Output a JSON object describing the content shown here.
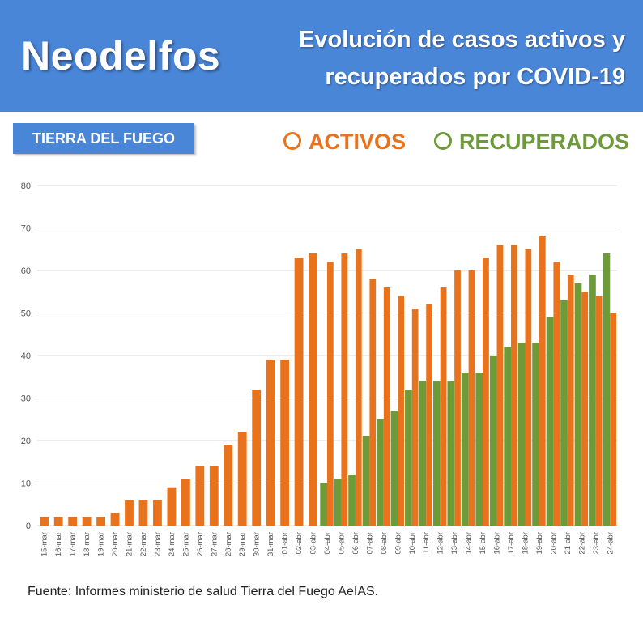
{
  "header": {
    "brand": "Neodelfos",
    "title_line1": "Evolución de casos activos y",
    "title_line2": "recuperados por COVID-19"
  },
  "region_label": "TIERRA DEL FUEGO",
  "legend": {
    "activos": {
      "label": "ACTIVOS",
      "color": "#e8731c"
    },
    "recuperados": {
      "label": "RECUPERADOS",
      "color": "#6e9b3a"
    }
  },
  "source": "Fuente: Informes ministerio de salud Tierra del Fuego AeIAS.",
  "colors": {
    "header_bg": "#4a86d8",
    "grid": "#d9d9d9",
    "tick_text": "#555555"
  },
  "chart_data": {
    "type": "bar",
    "ylim": [
      0,
      80
    ],
    "yticks": [
      0,
      10,
      20,
      30,
      40,
      50,
      60,
      70,
      80
    ],
    "grid": true,
    "categories": [
      "15-mar",
      "16-mar",
      "17-mar",
      "18-mar",
      "19-mar",
      "20-mar",
      "21-mar",
      "22-mar",
      "23-mar",
      "24-mar",
      "25-mar",
      "26-mar",
      "27-mar",
      "28-mar",
      "29-mar",
      "30-mar",
      "31-mar",
      "01-abr",
      "02-abr",
      "03-abr",
      "04-abr",
      "05-abr",
      "06-abr",
      "07-abr",
      "08-abr",
      "09-abr",
      "10-abr",
      "11-abr",
      "12-abr",
      "13-abr",
      "14-abr",
      "15-abr",
      "16-abr",
      "17-abr",
      "18-abr",
      "19-abr",
      "20-abr",
      "21-abr",
      "22-abr",
      "23-abr",
      "24-abr"
    ],
    "series": [
      {
        "name": "ACTIVOS",
        "color": "#e8731c",
        "values": [
          2,
          2,
          2,
          2,
          2,
          3,
          6,
          6,
          6,
          9,
          11,
          14,
          14,
          19,
          22,
          32,
          39,
          39,
          63,
          64,
          62,
          64,
          65,
          58,
          56,
          54,
          51,
          52,
          56,
          60,
          60,
          63,
          66,
          66,
          65,
          68,
          62,
          59,
          55,
          54,
          50
        ]
      },
      {
        "name": "RECUPERADOS",
        "color": "#6e9b3a",
        "values": [
          0,
          0,
          0,
          0,
          0,
          0,
          0,
          0,
          0,
          0,
          0,
          0,
          0,
          0,
          0,
          0,
          0,
          0,
          0,
          0,
          10,
          11,
          12,
          21,
          25,
          27,
          32,
          34,
          34,
          34,
          36,
          36,
          40,
          42,
          43,
          43,
          49,
          53,
          57,
          59,
          64
        ]
      }
    ]
  }
}
